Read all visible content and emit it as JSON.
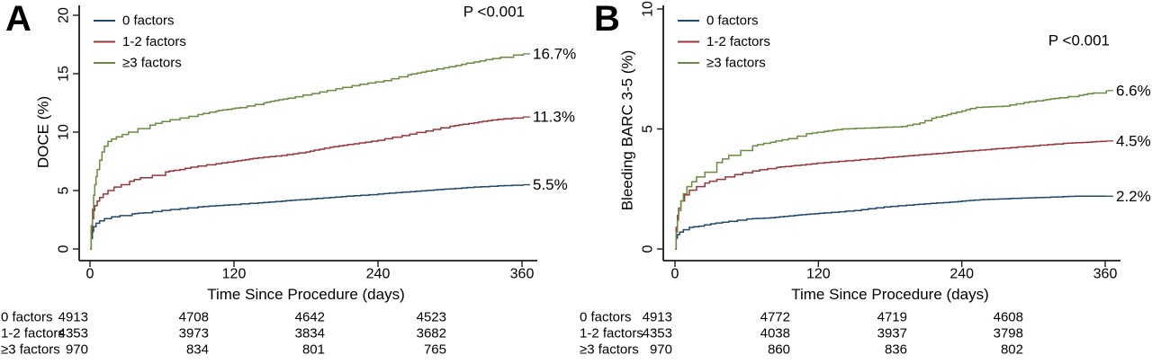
{
  "colors": {
    "axis": "#1a1a1a",
    "text": "#000000",
    "background": "#ffffff"
  },
  "chart_data": [
    {
      "type": "line",
      "step": true,
      "panel_label": "A",
      "xlabel": "Time Since Procedure (days)",
      "ylabel": "DOCE (%)",
      "annotation": "P <0.001",
      "xlim": [
        0,
        360
      ],
      "ylim": [
        0,
        20
      ],
      "x_ticks": [
        0,
        120,
        240,
        360
      ],
      "y_ticks": [
        0,
        5,
        10,
        15,
        20
      ],
      "grid": false,
      "legend_position": "top-left",
      "series": [
        {
          "name": "0 factors",
          "color": "#20496f",
          "end_label": "5.5%",
          "points": [
            [
              0,
              0
            ],
            [
              1,
              0.9
            ],
            [
              2,
              1.5
            ],
            [
              3,
              1.9
            ],
            [
              5,
              2.2
            ],
            [
              8,
              2.4
            ],
            [
              12,
              2.6
            ],
            [
              18,
              2.75
            ],
            [
              25,
              2.85
            ],
            [
              35,
              3.0
            ],
            [
              45,
              3.1
            ],
            [
              60,
              3.3
            ],
            [
              75,
              3.45
            ],
            [
              90,
              3.6
            ],
            [
              105,
              3.7
            ],
            [
              120,
              3.8
            ],
            [
              140,
              3.95
            ],
            [
              160,
              4.1
            ],
            [
              180,
              4.25
            ],
            [
              200,
              4.4
            ],
            [
              220,
              4.55
            ],
            [
              240,
              4.7
            ],
            [
              260,
              4.85
            ],
            [
              280,
              5.0
            ],
            [
              300,
              5.15
            ],
            [
              320,
              5.3
            ],
            [
              340,
              5.4
            ],
            [
              352,
              5.45
            ],
            [
              361,
              5.5
            ]
          ]
        },
        {
          "name": "1-2 factors",
          "color": "#9a343a",
          "end_label": "11.3%",
          "points": [
            [
              0,
              0
            ],
            [
              1,
              1.6
            ],
            [
              2,
              2.6
            ],
            [
              3,
              3.3
            ],
            [
              4,
              3.7
            ],
            [
              6,
              4.1
            ],
            [
              8,
              4.4
            ],
            [
              11,
              4.7
            ],
            [
              15,
              5.0
            ],
            [
              20,
              5.3
            ],
            [
              26,
              5.5
            ],
            [
              33,
              5.8
            ],
            [
              42,
              6.1
            ],
            [
              52,
              6.3
            ],
            [
              63,
              6.6
            ],
            [
              75,
              6.8
            ],
            [
              90,
              7.1
            ],
            [
              105,
              7.3
            ],
            [
              120,
              7.5
            ],
            [
              140,
              7.8
            ],
            [
              160,
              8.0
            ],
            [
              180,
              8.3
            ],
            [
              200,
              8.7
            ],
            [
              220,
              9.0
            ],
            [
              240,
              9.3
            ],
            [
              260,
              9.7
            ],
            [
              280,
              10.1
            ],
            [
              300,
              10.5
            ],
            [
              320,
              10.8
            ],
            [
              340,
              11.1
            ],
            [
              352,
              11.2
            ],
            [
              361,
              11.3
            ]
          ]
        },
        {
          "name": "≥3 factors",
          "color": "#6a8a3f",
          "end_label": "16.7%",
          "points": [
            [
              0,
              0
            ],
            [
              1,
              2.0
            ],
            [
              2,
              3.4
            ],
            [
              3,
              4.6
            ],
            [
              4,
              5.5
            ],
            [
              5,
              6.2
            ],
            [
              6,
              6.8
            ],
            [
              8,
              7.6
            ],
            [
              10,
              8.3
            ],
            [
              12,
              8.8
            ],
            [
              15,
              9.2
            ],
            [
              18,
              9.4
            ],
            [
              22,
              9.6
            ],
            [
              27,
              9.8
            ],
            [
              32,
              10.0
            ],
            [
              40,
              10.3
            ],
            [
              50,
              10.6
            ],
            [
              60,
              10.9
            ],
            [
              75,
              11.2
            ],
            [
              90,
              11.5
            ],
            [
              105,
              11.8
            ],
            [
              125,
              12.1
            ],
            [
              145,
              12.5
            ],
            [
              165,
              12.9
            ],
            [
              185,
              13.3
            ],
            [
              205,
              13.7
            ],
            [
              225,
              14.1
            ],
            [
              245,
              14.4
            ],
            [
              265,
              14.9
            ],
            [
              285,
              15.3
            ],
            [
              305,
              15.7
            ],
            [
              325,
              16.1
            ],
            [
              342,
              16.4
            ],
            [
              353,
              16.6
            ],
            [
              361,
              16.7
            ]
          ]
        }
      ],
      "risk_table": {
        "rows": [
          {
            "label": "0 factors",
            "values": [
              "4913",
              "4708",
              "4642",
              "4523"
            ]
          },
          {
            "label": "1-2 factors",
            "values": [
              "4353",
              "3973",
              "3834",
              "3682"
            ]
          },
          {
            "label": "≥3 factors",
            "values": [
              "970",
              "834",
              "801",
              "765"
            ]
          }
        ]
      }
    },
    {
      "type": "line",
      "step": true,
      "panel_label": "B",
      "xlabel": "Time Since Procedure (days)",
      "ylabel": "Bleeding BARC 3-5 (%)",
      "annotation": "P <0.001",
      "xlim": [
        0,
        360
      ],
      "ylim": [
        0,
        10
      ],
      "x_ticks": [
        0,
        120,
        240,
        360
      ],
      "y_ticks": [
        0,
        5,
        10
      ],
      "grid": false,
      "legend_position": "top-left",
      "series": [
        {
          "name": "0 factors",
          "color": "#20496f",
          "end_label": "2.2%",
          "points": [
            [
              0,
              0
            ],
            [
              1,
              0.45
            ],
            [
              2,
              0.6
            ],
            [
              4,
              0.7
            ],
            [
              7,
              0.8
            ],
            [
              12,
              0.9
            ],
            [
              20,
              0.95
            ],
            [
              30,
              1.05
            ],
            [
              45,
              1.15
            ],
            [
              60,
              1.25
            ],
            [
              80,
              1.3
            ],
            [
              100,
              1.4
            ],
            [
              125,
              1.5
            ],
            [
              150,
              1.6
            ],
            [
              175,
              1.75
            ],
            [
              200,
              1.85
            ],
            [
              230,
              1.95
            ],
            [
              255,
              2.05
            ],
            [
              280,
              2.1
            ],
            [
              310,
              2.15
            ],
            [
              335,
              2.2
            ],
            [
              361,
              2.2
            ]
          ]
        },
        {
          "name": "1-2 factors",
          "color": "#9a343a",
          "end_label": "4.5%",
          "points": [
            [
              0,
              0
            ],
            [
              1,
              0.9
            ],
            [
              2,
              1.4
            ],
            [
              3,
              1.7
            ],
            [
              5,
              2.0
            ],
            [
              8,
              2.25
            ],
            [
              12,
              2.45
            ],
            [
              18,
              2.6
            ],
            [
              25,
              2.75
            ],
            [
              35,
              2.9
            ],
            [
              50,
              3.1
            ],
            [
              65,
              3.25
            ],
            [
              85,
              3.4
            ],
            [
              105,
              3.5
            ],
            [
              125,
              3.6
            ],
            [
              150,
              3.7
            ],
            [
              175,
              3.8
            ],
            [
              200,
              3.9
            ],
            [
              225,
              4.0
            ],
            [
              250,
              4.1
            ],
            [
              275,
              4.2
            ],
            [
              300,
              4.3
            ],
            [
              325,
              4.4
            ],
            [
              345,
              4.45
            ],
            [
              361,
              4.5
            ]
          ]
        },
        {
          "name": "≥3 factors",
          "color": "#6a8a3f",
          "end_label": "6.6%",
          "points": [
            [
              0,
              0
            ],
            [
              1,
              0.7
            ],
            [
              2,
              1.2
            ],
            [
              3,
              1.6
            ],
            [
              5,
              2.0
            ],
            [
              7,
              2.3
            ],
            [
              10,
              2.6
            ],
            [
              14,
              2.8
            ],
            [
              18,
              3.0
            ],
            [
              25,
              3.2
            ],
            [
              35,
              3.6
            ],
            [
              45,
              3.9
            ],
            [
              55,
              4.1
            ],
            [
              65,
              4.3
            ],
            [
              80,
              4.45
            ],
            [
              95,
              4.6
            ],
            [
              110,
              4.8
            ],
            [
              125,
              4.9
            ],
            [
              140,
              5.0
            ],
            [
              165,
              5.05
            ],
            [
              190,
              5.1
            ],
            [
              205,
              5.25
            ],
            [
              215,
              5.45
            ],
            [
              228,
              5.6
            ],
            [
              240,
              5.75
            ],
            [
              252,
              5.9
            ],
            [
              275,
              5.95
            ],
            [
              292,
              6.1
            ],
            [
              308,
              6.2
            ],
            [
              322,
              6.3
            ],
            [
              338,
              6.4
            ],
            [
              350,
              6.5
            ],
            [
              361,
              6.6
            ]
          ]
        }
      ],
      "risk_table": {
        "rows": [
          {
            "label": "0 factors",
            "values": [
              "4913",
              "4772",
              "4719",
              "4608"
            ]
          },
          {
            "label": "1-2 factors",
            "values": [
              "4353",
              "4038",
              "3937",
              "3798"
            ]
          },
          {
            "label": "≥3 factors",
            "values": [
              "970",
              "860",
              "836",
              "802"
            ]
          }
        ]
      }
    }
  ]
}
